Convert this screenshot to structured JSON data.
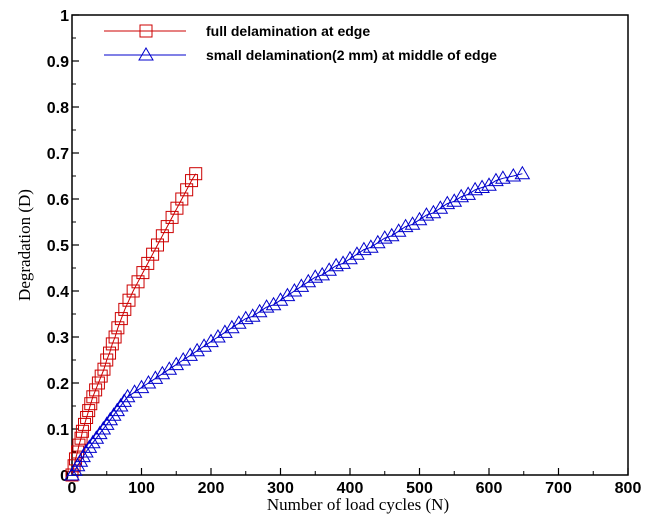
{
  "chart_data": {
    "type": "line",
    "title": "",
    "xlabel": "Number of load cycles (N)",
    "ylabel": "Degradation (D)",
    "xlim": [
      0,
      800
    ],
    "ylim": [
      0,
      1
    ],
    "xticks": [
      0,
      100,
      200,
      300,
      400,
      500,
      600,
      700,
      800
    ],
    "yticks": [
      0,
      0.1,
      0.2,
      0.3,
      0.4,
      0.5,
      0.6,
      0.7,
      0.8,
      0.9,
      1
    ],
    "xtick_labels": [
      "0",
      "100",
      "200",
      "300",
      "400",
      "500",
      "600",
      "700",
      "800"
    ],
    "ytick_labels": [
      "0",
      "0.1",
      "0.2",
      "0.3",
      "0.4",
      "0.5",
      "0.6",
      "0.7",
      "0.8",
      "0.9",
      "1"
    ],
    "grid": false,
    "legend_position": "top-left",
    "series": [
      {
        "name": "full delamination at edge",
        "color": "#cc0000",
        "marker": "square",
        "x": [
          0,
          3,
          5,
          8,
          10,
          13,
          15,
          18,
          21,
          24,
          27,
          30,
          34,
          38,
          42,
          46,
          50,
          54,
          58,
          62,
          66,
          71,
          76,
          82,
          88,
          95,
          102,
          109,
          116,
          123,
          130,
          137,
          144,
          151,
          158,
          165,
          172,
          178
        ],
        "y": [
          0,
          0.02,
          0.035,
          0.05,
          0.065,
          0.08,
          0.095,
          0.11,
          0.125,
          0.14,
          0.155,
          0.17,
          0.185,
          0.2,
          0.215,
          0.23,
          0.25,
          0.265,
          0.285,
          0.3,
          0.32,
          0.34,
          0.36,
          0.38,
          0.4,
          0.42,
          0.44,
          0.46,
          0.48,
          0.5,
          0.52,
          0.54,
          0.56,
          0.58,
          0.6,
          0.62,
          0.64,
          0.655
        ]
      },
      {
        "name": "small delamination(2 mm) at middle of edge",
        "color": "#0000cc",
        "marker": "triangle",
        "x": [
          0,
          4,
          8,
          12,
          16,
          20,
          25,
          30,
          35,
          40,
          45,
          50,
          55,
          60,
          65,
          70,
          75,
          80,
          90,
          100,
          110,
          120,
          130,
          140,
          150,
          160,
          170,
          180,
          190,
          200,
          210,
          220,
          230,
          240,
          250,
          260,
          270,
          280,
          290,
          300,
          310,
          320,
          330,
          340,
          350,
          360,
          370,
          380,
          390,
          400,
          410,
          420,
          430,
          440,
          450,
          460,
          470,
          480,
          490,
          500,
          510,
          520,
          530,
          540,
          550,
          560,
          570,
          580,
          590,
          600,
          610,
          620,
          635,
          648
        ],
        "y": [
          0,
          0.01,
          0.02,
          0.03,
          0.04,
          0.05,
          0.06,
          0.07,
          0.08,
          0.09,
          0.1,
          0.11,
          0.12,
          0.13,
          0.14,
          0.15,
          0.16,
          0.17,
          0.18,
          0.19,
          0.2,
          0.21,
          0.22,
          0.23,
          0.24,
          0.25,
          0.26,
          0.27,
          0.28,
          0.29,
          0.3,
          0.31,
          0.32,
          0.33,
          0.34,
          0.345,
          0.355,
          0.365,
          0.37,
          0.38,
          0.39,
          0.4,
          0.41,
          0.42,
          0.43,
          0.435,
          0.445,
          0.455,
          0.46,
          0.47,
          0.48,
          0.49,
          0.495,
          0.505,
          0.515,
          0.52,
          0.53,
          0.54,
          0.545,
          0.555,
          0.565,
          0.57,
          0.58,
          0.59,
          0.595,
          0.605,
          0.61,
          0.62,
          0.625,
          0.63,
          0.64,
          0.645,
          0.65,
          0.655
        ]
      }
    ]
  }
}
